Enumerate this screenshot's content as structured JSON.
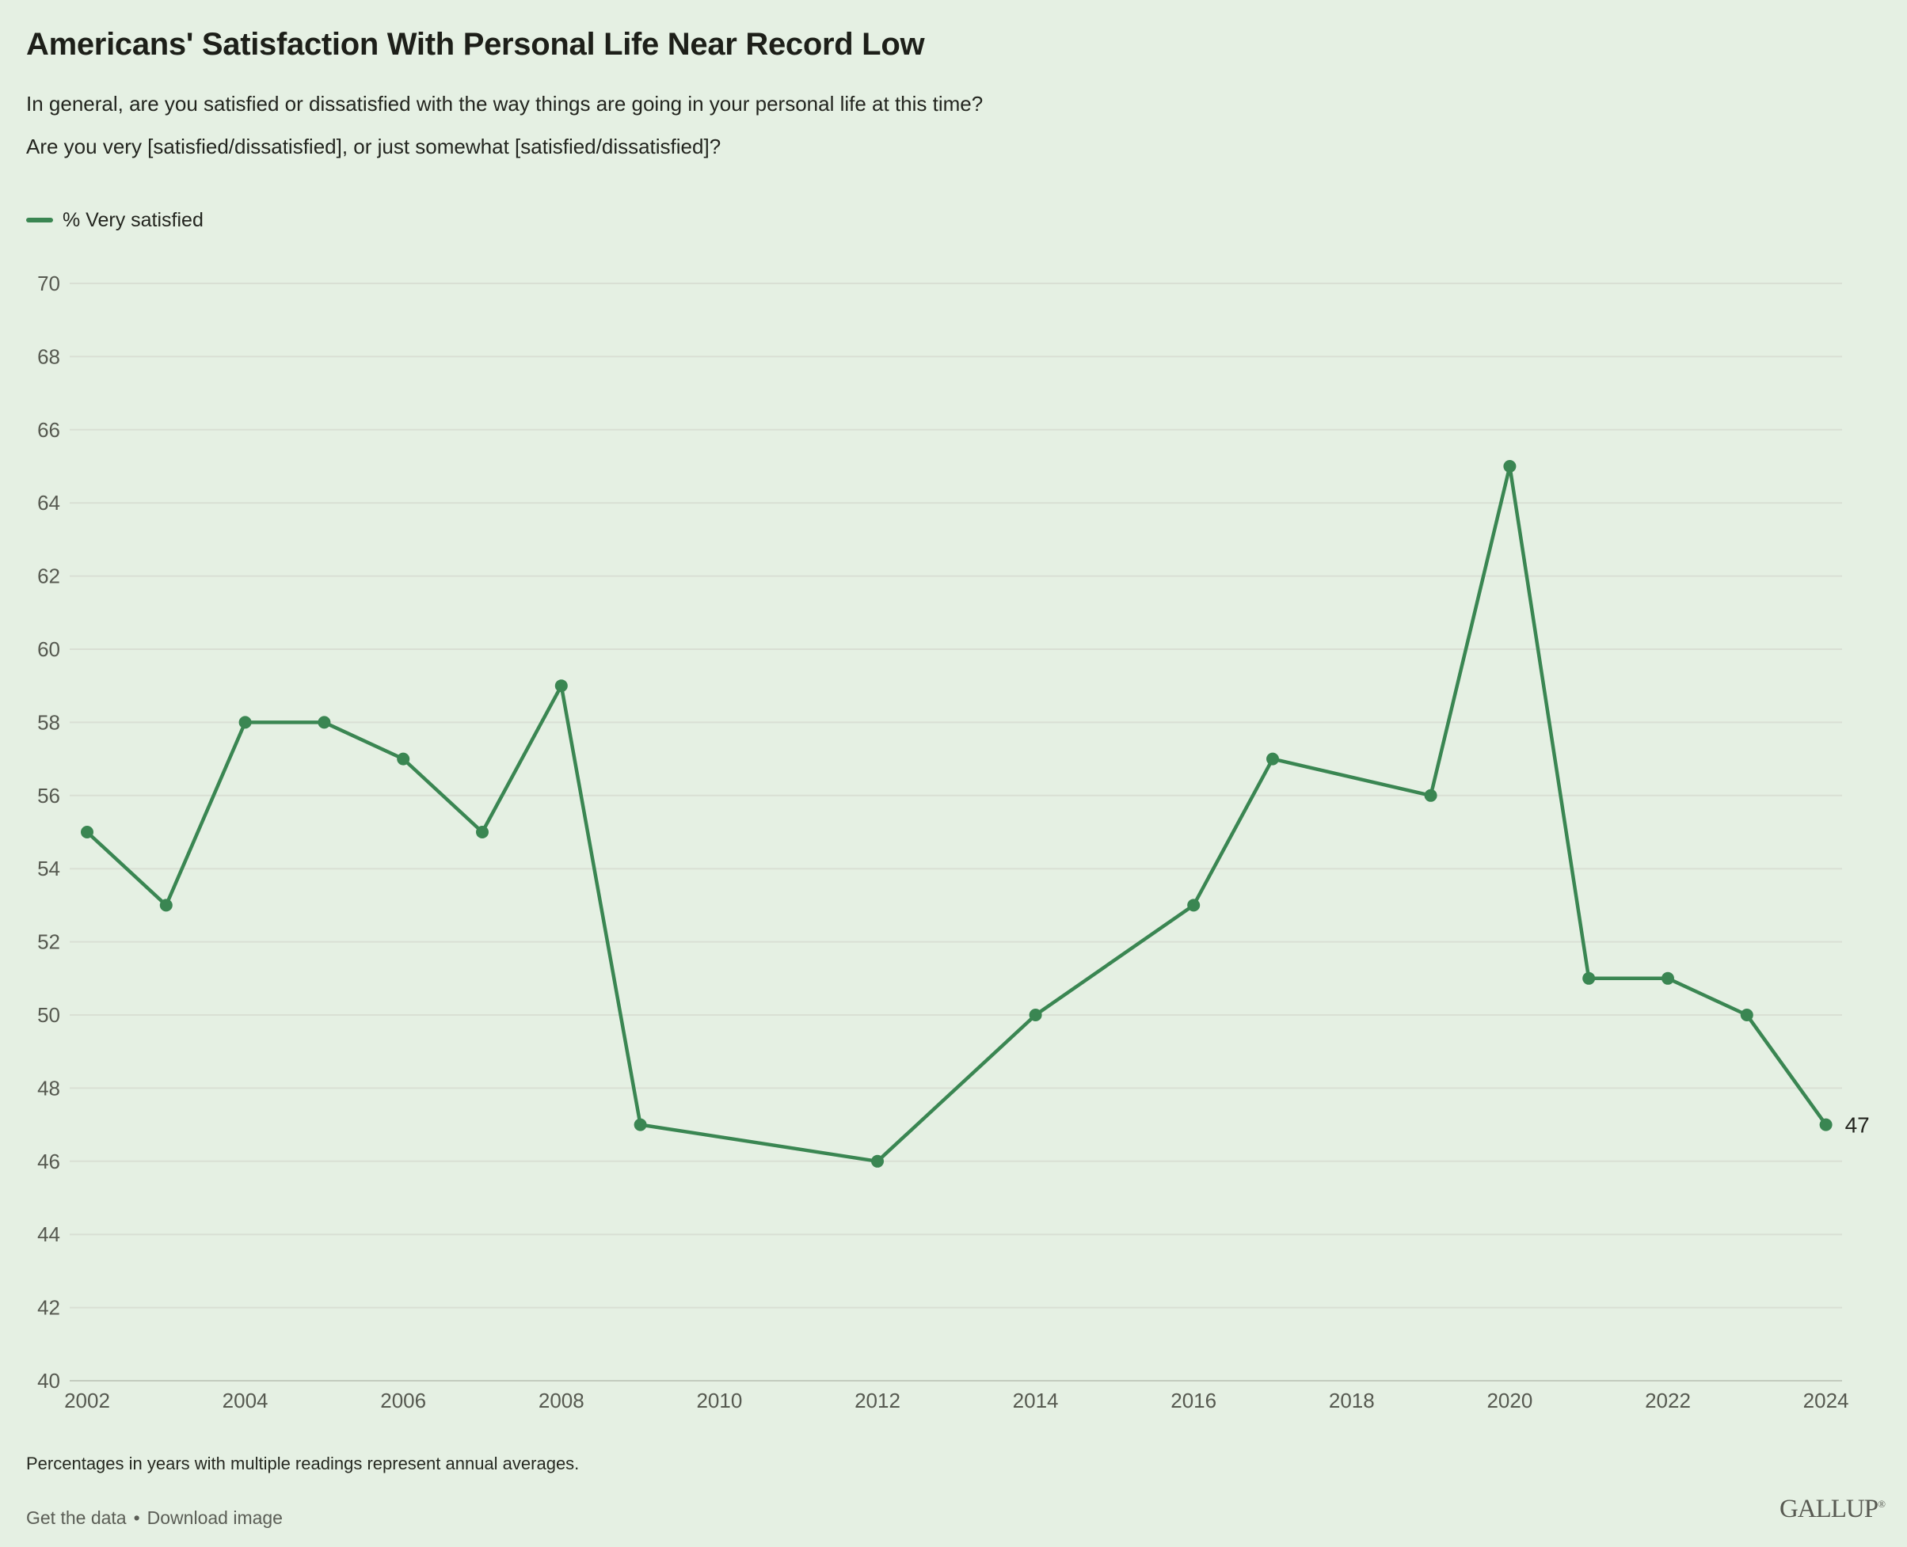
{
  "header": {
    "title": "Americans' Satisfaction With Personal Life Near Record Low",
    "question_line1": "In general, are you satisfied or dissatisfied with the way things are going in your personal life at this time?",
    "question_line2": "Are you very [satisfied/dissatisfied], or just somewhat [satisfied/dissatisfied]?"
  },
  "legend": {
    "label": "% Very satisfied",
    "color": "#3a8652"
  },
  "colors": {
    "background": "#e5f0e3",
    "line": "#3a8652",
    "grid": "#d9dfd4",
    "axis_baseline": "#c3cbbe",
    "tick_text": "#565950",
    "text": "#23251f"
  },
  "chart_data": {
    "type": "line",
    "title": "Americans' Satisfaction With Personal Life Near Record Low",
    "xlabel": "",
    "ylabel": "% Very satisfied",
    "xlim": [
      2002,
      2024
    ],
    "ylim": [
      40,
      70
    ],
    "grid": true,
    "legend_position": "top-left",
    "x_ticks": [
      2002,
      2004,
      2006,
      2008,
      2010,
      2012,
      2014,
      2016,
      2018,
      2020,
      2022,
      2024
    ],
    "y_ticks": [
      40,
      42,
      44,
      46,
      48,
      50,
      52,
      54,
      56,
      58,
      60,
      62,
      64,
      66,
      68,
      70
    ],
    "series": [
      {
        "name": "% Very satisfied",
        "color": "#3a8652",
        "points": [
          {
            "x": 2002,
            "y": 55
          },
          {
            "x": 2003,
            "y": 53
          },
          {
            "x": 2004,
            "y": 58
          },
          {
            "x": 2005,
            "y": 58
          },
          {
            "x": 2006,
            "y": 57
          },
          {
            "x": 2007,
            "y": 55
          },
          {
            "x": 2008,
            "y": 59
          },
          {
            "x": 2009,
            "y": 47
          },
          {
            "x": 2012,
            "y": 46
          },
          {
            "x": 2014,
            "y": 50
          },
          {
            "x": 2016,
            "y": 53
          },
          {
            "x": 2017,
            "y": 57
          },
          {
            "x": 2019,
            "y": 56
          },
          {
            "x": 2020,
            "y": 65
          },
          {
            "x": 2021,
            "y": 51
          },
          {
            "x": 2022,
            "y": 51
          },
          {
            "x": 2023,
            "y": 50
          },
          {
            "x": 2024,
            "y": 47
          }
        ],
        "end_value_label": "47"
      }
    ]
  },
  "footer": {
    "note": "Percentages in years with multiple readings represent annual averages.",
    "get_data_label": "Get the data",
    "separator": "•",
    "download_label": "Download image",
    "brand": "GALLUP",
    "brand_mark": "®"
  }
}
